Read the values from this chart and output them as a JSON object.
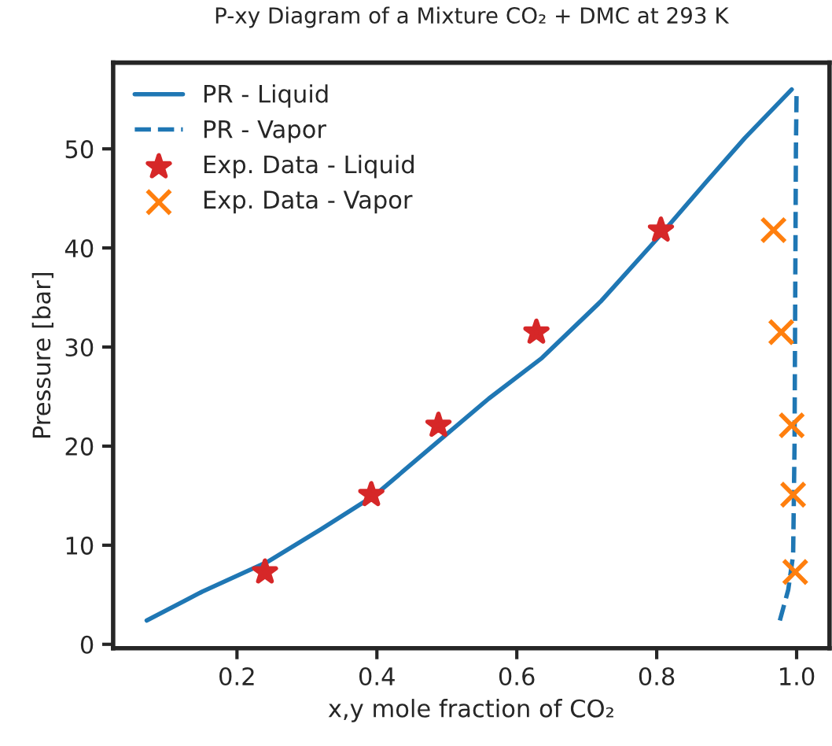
{
  "chart_data": {
    "type": "line",
    "title": "P-xy Diagram of a Mixture CO₂ + DMC at 293 K",
    "xlabel": "x,y mole fraction of CO₂",
    "ylabel": "Pressure [bar]",
    "xlim": [
      0.023,
      1.047
    ],
    "ylim": [
      -0.4,
      58.7
    ],
    "xticks": [
      {
        "value": 0.2,
        "label": "0.2"
      },
      {
        "value": 0.4,
        "label": "0.4"
      },
      {
        "value": 0.6,
        "label": "0.6"
      },
      {
        "value": 0.8,
        "label": "0.8"
      },
      {
        "value": 1.0,
        "label": "1.0"
      }
    ],
    "yticks": [
      0,
      10,
      20,
      30,
      40,
      50
    ],
    "grid": false,
    "legend": "top left",
    "series": [
      {
        "name": "PR - Liquid",
        "line_style": "solid",
        "marker": "none",
        "color": "#1f77b4",
        "x": [
          0.071,
          0.15,
          0.243,
          0.32,
          0.398,
          0.488,
          0.56,
          0.636,
          0.72,
          0.804,
          0.87,
          0.926,
          0.993
        ],
        "values": [
          2.4,
          5.3,
          8.3,
          11.6,
          15.1,
          20.5,
          24.8,
          28.9,
          34.6,
          41.2,
          46.6,
          51.1,
          56.0
        ]
      },
      {
        "name": "PR - Vapor",
        "line_style": "dashed",
        "marker": "none",
        "color": "#1f77b4",
        "x": [
          0.976,
          0.988,
          0.995,
          0.997,
          0.998,
          0.999,
          1.0
        ],
        "values": [
          2.4,
          5.5,
          9.0,
          20,
          35,
          50,
          56.0
        ]
      },
      {
        "name": "Exp. Data - Liquid",
        "type": "scatter",
        "marker": "star",
        "color": "#d62728",
        "x": [
          0.24,
          0.392,
          0.488,
          0.628,
          0.806
        ],
        "values": [
          7.3,
          15.1,
          22.1,
          31.5,
          41.8
        ]
      },
      {
        "name": "Exp. Data - Vapor",
        "type": "scatter",
        "marker": "cross",
        "color": "#ff7f0e",
        "x": [
          0.967,
          0.978,
          0.993,
          0.995,
          0.998
        ],
        "values": [
          41.8,
          31.5,
          22.1,
          15.1,
          7.3
        ]
      }
    ]
  }
}
